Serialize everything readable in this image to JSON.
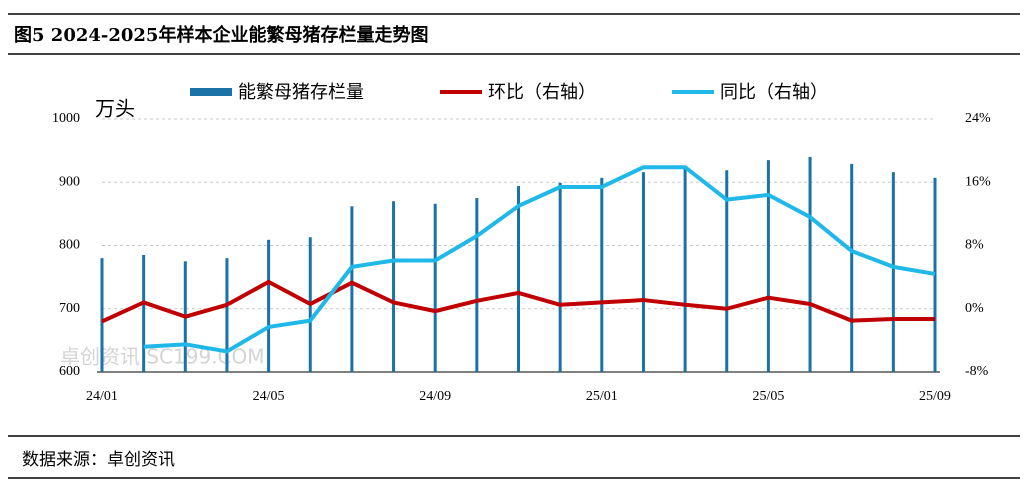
{
  "header": {
    "title": "图5 2024-2025年样本企业能繁母猪存栏量走势图"
  },
  "footer": {
    "source": "数据来源：卓创资讯"
  },
  "watermark": "卓创资讯 SC199.COM",
  "chart_data": {
    "type": "bar-line",
    "y_unit": "万头",
    "categories": [
      "24/01",
      null,
      null,
      null,
      "24/05",
      null,
      null,
      null,
      "24/09",
      null,
      null,
      null,
      "25/01",
      null,
      null,
      null,
      "25/05",
      null,
      null,
      null,
      "25/09"
    ],
    "series": [
      {
        "name": "能繁母猪存栏量",
        "type": "bar",
        "color": "#1a72a6",
        "values": [
          780,
          785,
          775,
          780,
          809,
          813,
          862,
          870,
          866,
          875,
          894,
          899,
          907,
          916,
          922,
          919,
          935,
          940,
          929,
          916,
          907
        ]
      },
      {
        "name": "环比（右轴）",
        "type": "line",
        "axis": "y2",
        "color": "#c00000",
        "values": [
          -1.6,
          0.8,
          -1.0,
          0.5,
          3.4,
          0.6,
          3.3,
          0.8,
          -0.3,
          1.0,
          2.0,
          0.5,
          0.8,
          1.1,
          0.5,
          0,
          1.4,
          0.6,
          -1.5,
          -1.3,
          -1.3
        ]
      },
      {
        "name": "同比（右轴）",
        "type": "line",
        "axis": "y2",
        "color": "#1fb8e8",
        "values": [
          null,
          -4.8,
          -4.5,
          -5.4,
          -2.3,
          -1.5,
          5.3,
          6.1,
          6.1,
          9.2,
          13.0,
          15.4,
          15.4,
          17.9,
          17.9,
          13.8,
          14.4,
          11.6,
          7.3,
          5.3,
          4.4
        ]
      }
    ],
    "ylim": [
      600,
      1000
    ],
    "yticks": [
      600,
      700,
      800,
      900,
      1000
    ],
    "y2lim": [
      -8,
      24
    ],
    "y2ticks": [
      {
        "value": -8,
        "label": "-8%"
      },
      {
        "value": 0,
        "label": "0%"
      },
      {
        "value": 8,
        "label": "8%"
      },
      {
        "value": 16,
        "label": "16%"
      },
      {
        "value": 24,
        "label": "24%"
      }
    ],
    "grid": true
  }
}
